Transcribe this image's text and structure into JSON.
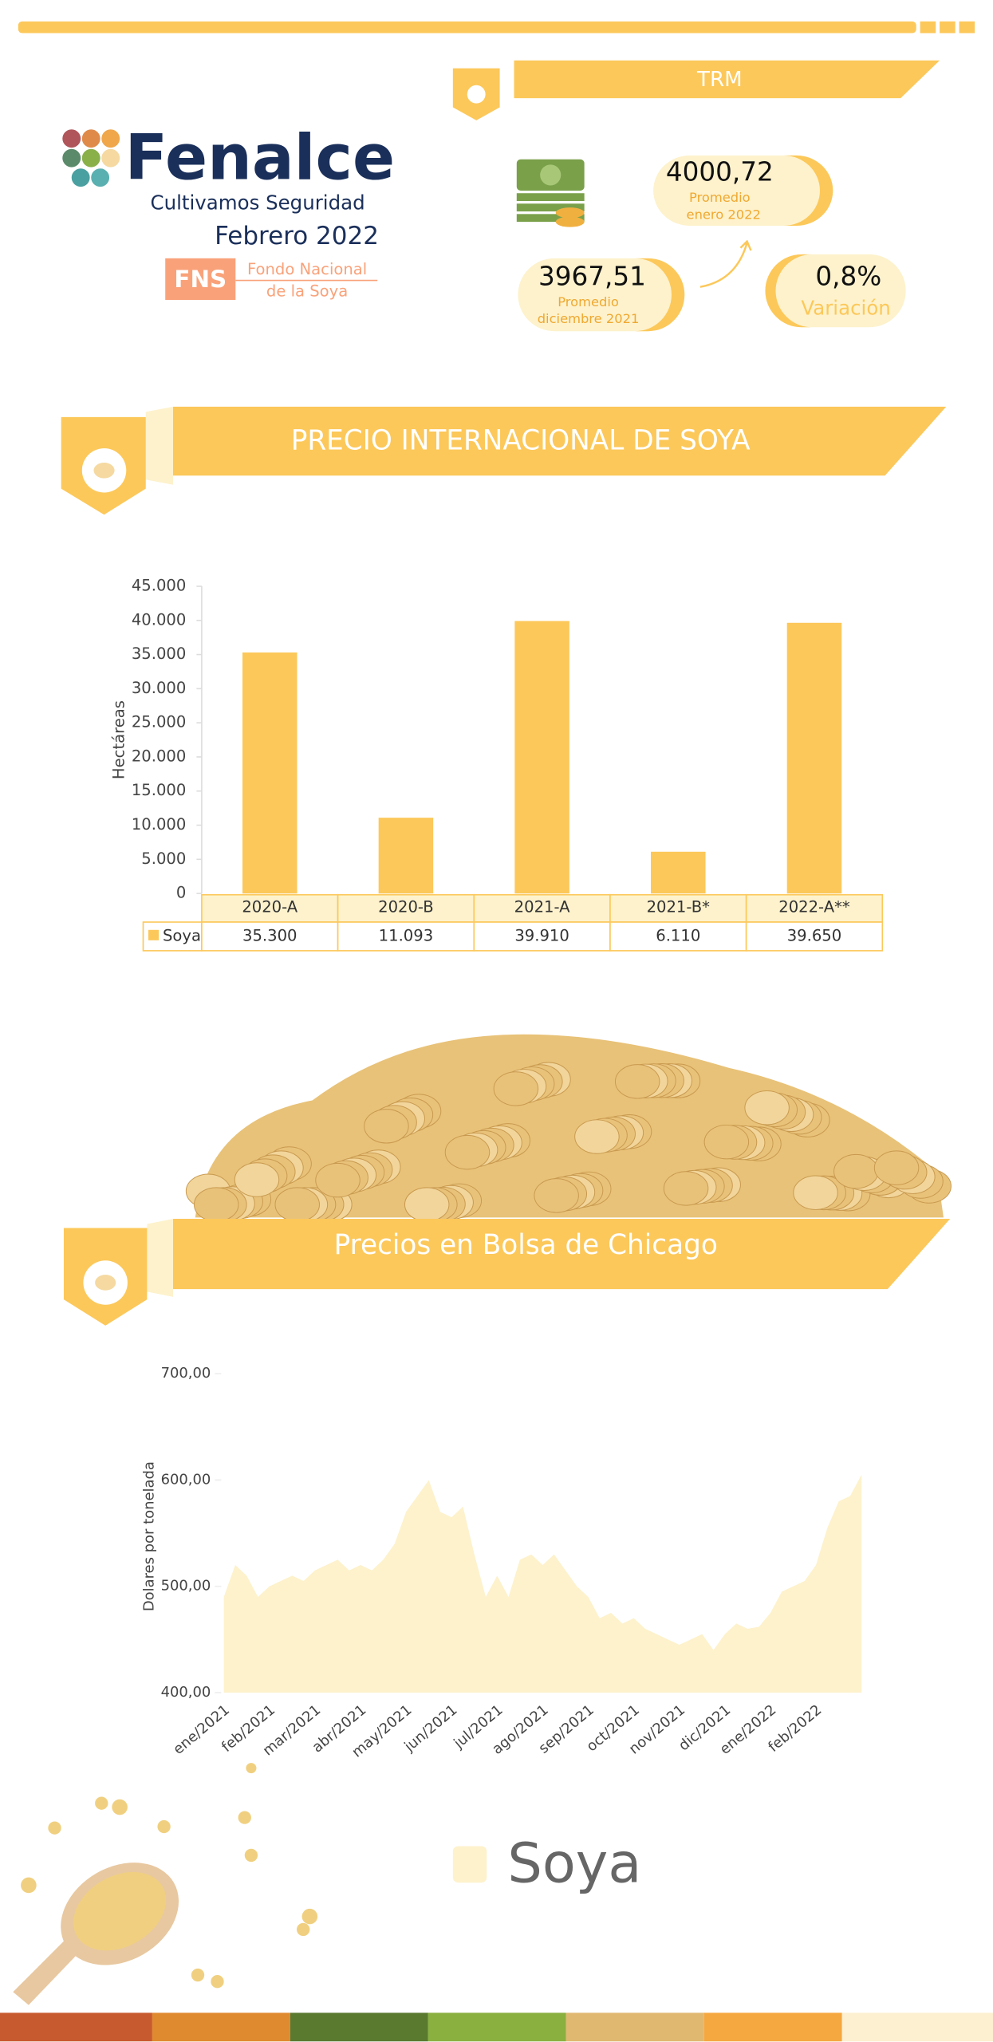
{
  "header": {
    "brand": "Fenalce",
    "slogan": "Cultivamos Seguridad",
    "date": "Febrero 2022",
    "fund_abbr": "FNS",
    "fund_name": [
      "Fondo Nacional",
      "de la Soya"
    ]
  },
  "trm": {
    "title": "TRM",
    "current": "4000,72",
    "current_label": [
      "Promedio",
      "enero 2022"
    ],
    "previous": "3967,51",
    "previous_label": [
      "Promedio",
      "diciembre 2021"
    ],
    "change": "0,8%",
    "change_label": "Variación"
  },
  "sections": [
    "PRECIO INTERNACIONAL DE SOYA",
    "Precios en Bolsa de Chicago"
  ],
  "chart_data": [
    {
      "type": "bar",
      "ylabel": "Hectáreas",
      "categories": [
        "2020-A",
        "2020-B",
        "2021-A",
        "2021-B*",
        "2022-A**"
      ],
      "series": [
        {
          "name": "Soya",
          "color": "#fcc85a",
          "values": [
            35300,
            11093,
            39910,
            6110,
            39650
          ],
          "value_labels": [
            "35.300",
            "11.093",
            "39.910",
            "6.110",
            "39.650"
          ]
        }
      ],
      "ylim": [
        0,
        45000
      ],
      "yticks": [
        0,
        {
          "value": 5000,
          "label": "5.000"
        },
        {
          "value": 10000,
          "label": "10.000"
        },
        {
          "value": 15000,
          "label": "15.000"
        },
        {
          "value": 20000,
          "label": "20.000"
        },
        {
          "value": 25000,
          "label": "25.000"
        },
        {
          "value": 30000,
          "label": "30.000"
        },
        {
          "value": 35000,
          "label": "35.000"
        },
        {
          "value": 40000,
          "label": "40.000"
        },
        {
          "value": 45000,
          "label": "45.000"
        }
      ]
    },
    {
      "type": "area",
      "ylabel": "Dolares por tonelada",
      "categories": [
        "ene/2021",
        null,
        null,
        null,
        "feb/2021",
        null,
        null,
        null,
        "mar/2021",
        null,
        null,
        null,
        "abr/2021",
        null,
        null,
        null,
        "may/2021",
        null,
        null,
        null,
        "jun/2021",
        null,
        null,
        null,
        "jul/2021",
        null,
        null,
        null,
        "ago/2021",
        null,
        null,
        null,
        "sep/2021",
        null,
        null,
        null,
        "oct/2021",
        null,
        null,
        null,
        "nov/2021",
        null,
        null,
        null,
        "dic/2021",
        null,
        null,
        null,
        "ene/2022",
        null,
        null,
        null,
        "feb/2022",
        null,
        null,
        null,
        null
      ],
      "series": [
        {
          "name": "Soya",
          "color": "#fdf2cc",
          "values": [
            490,
            520,
            510,
            490,
            500,
            505,
            510,
            505,
            515,
            520,
            525,
            515,
            520,
            515,
            525,
            540,
            570,
            585,
            600,
            570,
            565,
            575,
            530,
            490,
            510,
            490,
            525,
            530,
            520,
            530,
            515,
            500,
            490,
            470,
            475,
            465,
            470,
            460,
            455,
            450,
            445,
            450,
            455,
            440,
            455,
            465,
            460,
            462,
            475,
            495,
            500,
            505,
            520,
            555,
            580,
            585,
            605
          ]
        }
      ],
      "ylim": [
        400,
        700
      ],
      "yticks": [
        {
          "value": 400,
          "label": "400,00"
        },
        {
          "value": 500,
          "label": "500,00"
        },
        {
          "value": 600,
          "label": "600,00"
        },
        {
          "value": 700,
          "label": "700,00"
        }
      ]
    }
  ]
}
